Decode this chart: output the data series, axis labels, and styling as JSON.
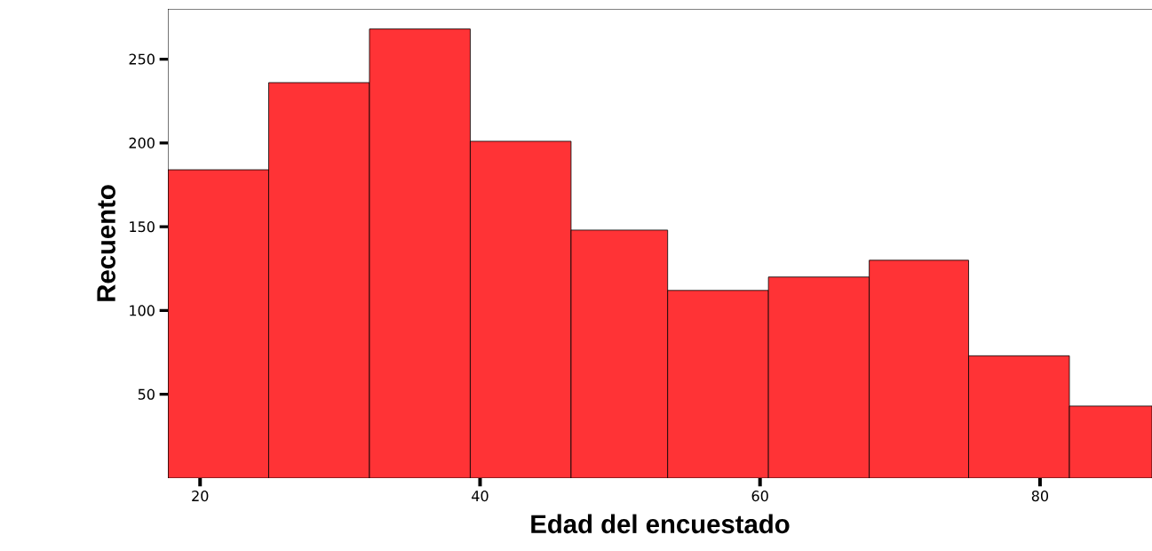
{
  "chart_data": {
    "type": "histogram",
    "xlabel": "Edad del encuestado",
    "ylabel": "Recuento",
    "bins": [
      17.7,
      24.9,
      32.1,
      39.3,
      46.5,
      53.4,
      60.6,
      67.8,
      74.9,
      82.1,
      88
    ],
    "values": [
      184,
      236,
      268,
      201,
      148,
      112,
      120,
      130,
      73,
      43
    ],
    "color": "#ff3336",
    "xlim": [
      17.7,
      88
    ],
    "ylim": [
      0,
      280
    ],
    "xticks": [
      20,
      40,
      60,
      80
    ],
    "yticks": [
      50,
      100,
      150,
      200,
      250
    ]
  }
}
